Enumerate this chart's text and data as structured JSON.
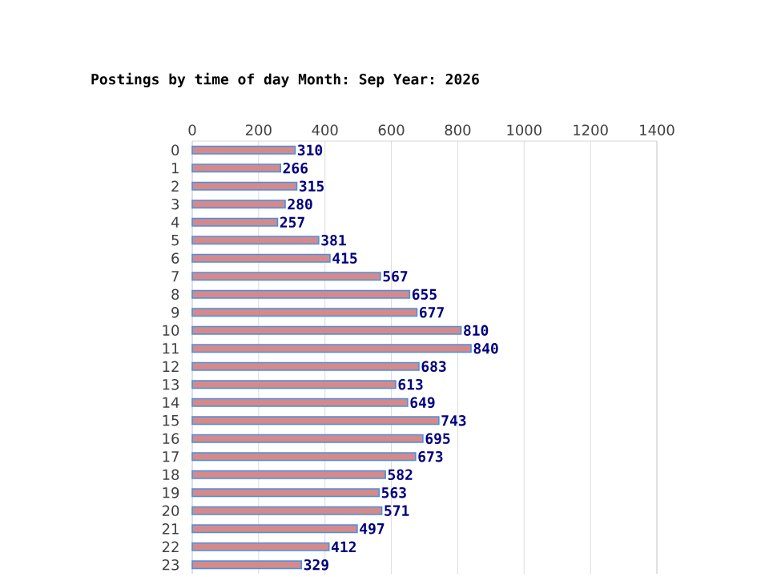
{
  "chart_data": {
    "type": "bar",
    "orientation": "horizontal",
    "title": "Postings by time of day Month: Sep   Year: 2026",
    "categories": [
      "0",
      "1",
      "2",
      "3",
      "4",
      "5",
      "6",
      "7",
      "8",
      "9",
      "10",
      "11",
      "12",
      "13",
      "14",
      "15",
      "16",
      "17",
      "18",
      "19",
      "20",
      "21",
      "22",
      "23"
    ],
    "values": [
      310,
      266,
      315,
      280,
      257,
      381,
      415,
      567,
      655,
      677,
      810,
      840,
      683,
      613,
      649,
      743,
      695,
      673,
      582,
      563,
      571,
      497,
      412,
      329
    ],
    "color": "#d48a8a",
    "xlim": [
      0,
      1400
    ],
    "xticks": [
      0,
      200,
      400,
      600,
      800,
      1000,
      1200,
      1400
    ],
    "grid": "x",
    "data_labels": true
  }
}
